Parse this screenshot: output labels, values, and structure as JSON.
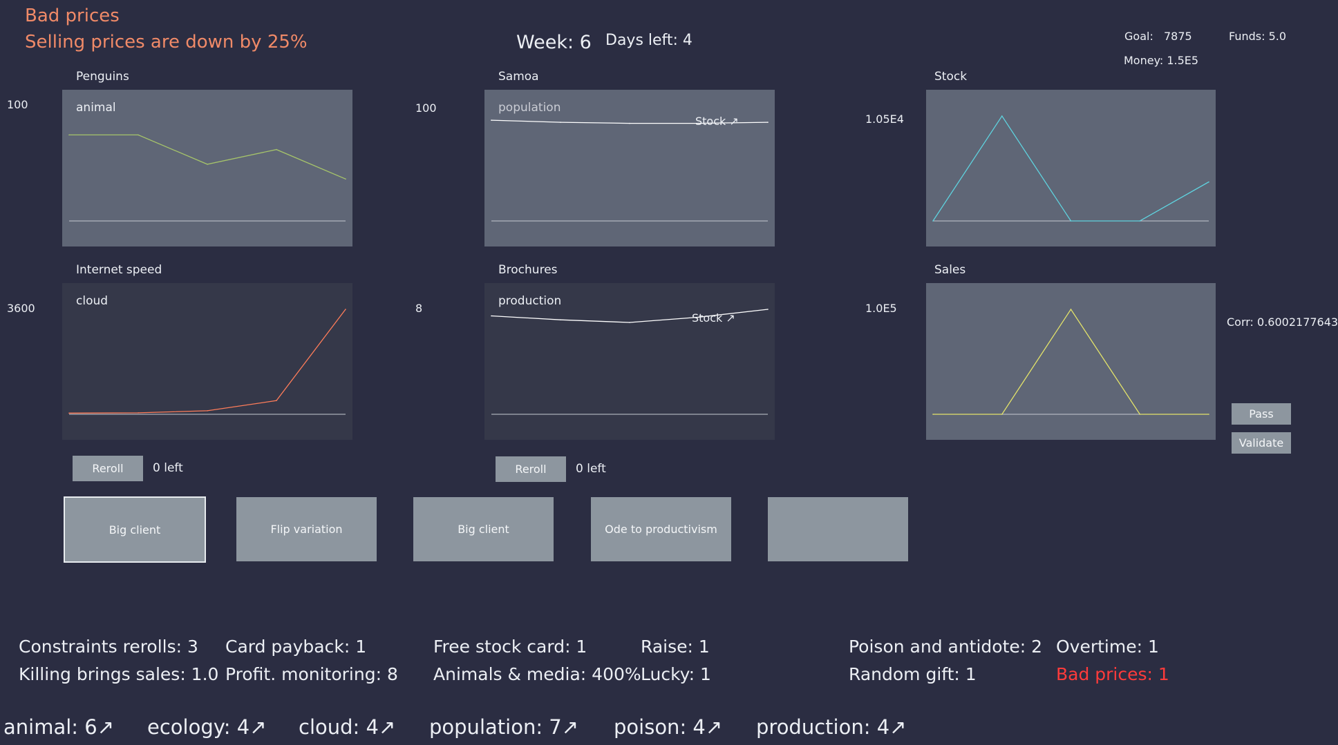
{
  "event": {
    "title": "Bad prices",
    "description": "Selling prices are down by 25%"
  },
  "header": {
    "week": "Week: 6",
    "days_left": "Days left: 4"
  },
  "stats_top": {
    "goal_label": "Goal:",
    "goal_value": "7875",
    "funds": "Funds: 5.0",
    "money": "Money: 1.5E5"
  },
  "charts": [
    {
      "title": "Penguins",
      "tag": "animal",
      "ymax_label": "100",
      "stock_link": "",
      "color": "#a6c46a",
      "chart_data": {
        "type": "line",
        "y": [
          82,
          82,
          54,
          68,
          40
        ],
        "ylim": [
          0,
          100
        ]
      }
    },
    {
      "title": "Samoa",
      "tag": "population",
      "ymax_label": "100",
      "stock_link": "Stock ↗",
      "color": "#ffffff",
      "chart_data": {
        "type": "line",
        "y": [
          96,
          94,
          93,
          93,
          94
        ],
        "ylim": [
          0,
          100
        ]
      }
    },
    {
      "title": "Stock",
      "tag": "",
      "ymax_label": "1.05E4",
      "stock_link": "",
      "color": "#5fd3df",
      "chart_data": {
        "type": "line",
        "y": [
          0,
          10500,
          0,
          0,
          3900
        ],
        "ylim": [
          0,
          10500
        ]
      }
    },
    {
      "title": "Internet speed",
      "tag": "cloud",
      "ymax_label": "3600",
      "stock_link": "",
      "color": "#ff7d5a",
      "chart_data": {
        "type": "line",
        "y": [
          40,
          50,
          120,
          470,
          3600
        ],
        "ylim": [
          0,
          3600
        ]
      }
    },
    {
      "title": "Brochures",
      "tag": "production",
      "ymax_label": "8",
      "stock_link": "Stock ↗",
      "color": "#ffffff",
      "chart_data": {
        "type": "line",
        "y": [
          7.5,
          7.2,
          7.0,
          7.4,
          8.0
        ],
        "ylim": [
          0,
          8
        ]
      }
    },
    {
      "title": "Sales",
      "tag": "",
      "ymax_label": "1.0E5",
      "stock_link": "",
      "color": "#e4e46a",
      "chart_data": {
        "type": "line",
        "y": [
          0,
          0,
          100000,
          0,
          0
        ],
        "ylim": [
          0,
          100000
        ]
      }
    }
  ],
  "corr": "Corr: 0.6002177643",
  "buttons": {
    "reroll": "Reroll",
    "left_1": "0 left",
    "left_2": "0 left",
    "pass": "Pass",
    "validate": "Validate"
  },
  "cards": [
    "Big client",
    "Flip variation",
    "Big client",
    "Ode to productivism",
    ""
  ],
  "stats": {
    "constraints_rerolls": "Constraints rerolls: 3",
    "killing_brings_sales": "Killing brings sales:   1.0",
    "card_payback": "Card payback: 1",
    "profit_monitoring": "Profit. monitoring: 8",
    "free_stock_card": "Free stock card: 1",
    "animals_media": "Animals & media: 400%",
    "raise": "Raise: 1",
    "lucky": "Lucky: 1",
    "poison_antidote": "Poison and antidote: 2",
    "random_gift": "Random gift: 1",
    "overtime": "Overtime: 1",
    "bad_prices": "Bad prices: 1"
  },
  "tags": [
    "animal: 6↗",
    "ecology: 4↗",
    "cloud: 4↗",
    "population: 7↗",
    "poison: 4↗",
    "production: 4↗"
  ],
  "colors": {
    "background": "#2b2d42",
    "event": "#f08a68",
    "alert": "#ff3b3b",
    "chart_light": "#5f6676",
    "chart_dark": "#353849"
  }
}
